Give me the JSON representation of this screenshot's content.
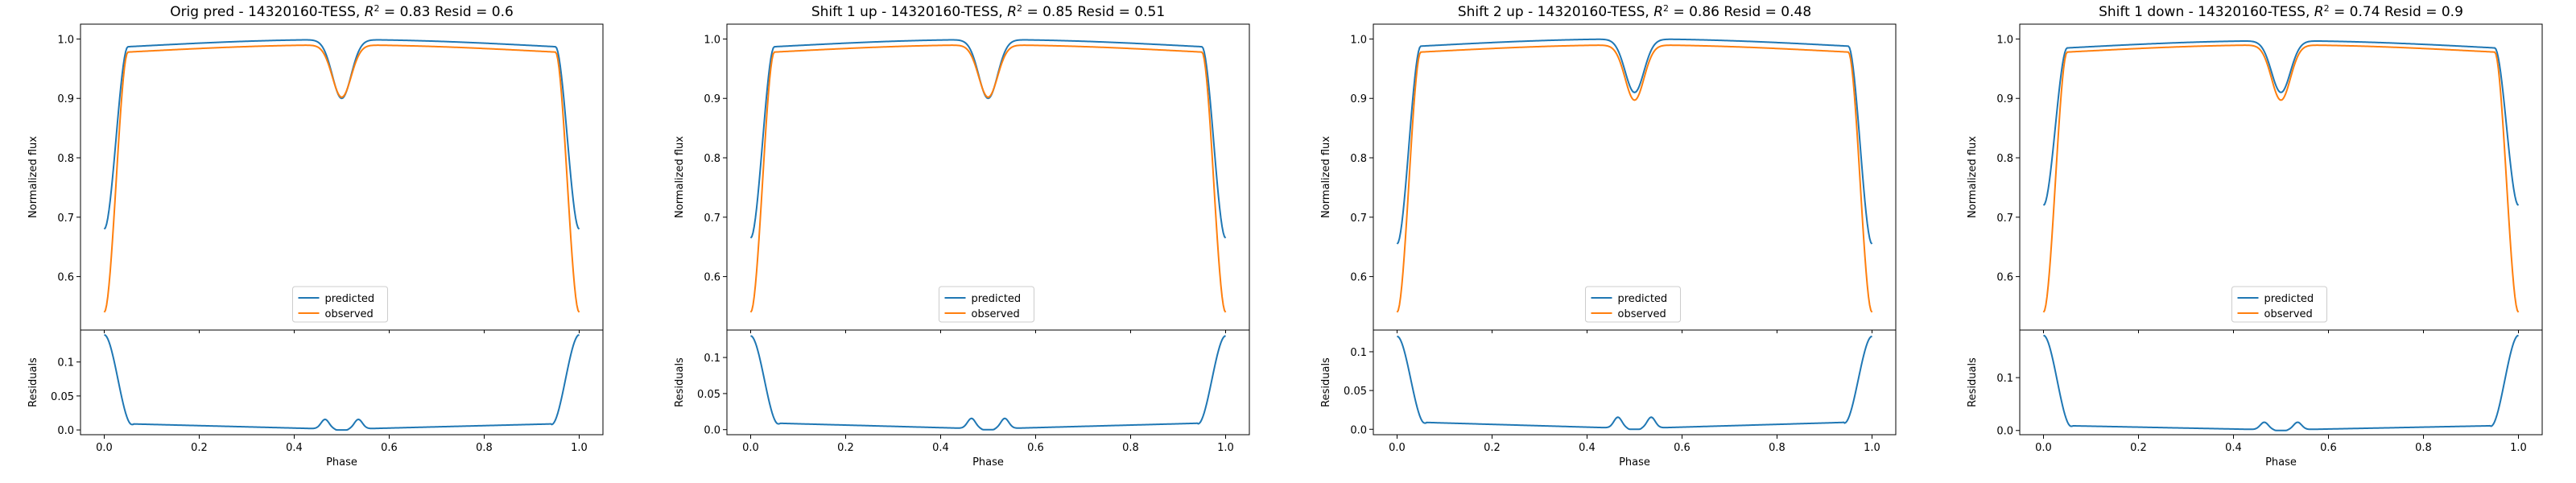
{
  "chart_data": [
    {
      "type": "line",
      "title_prefix": "Orig pred - 14320160-TESS, ",
      "r2": "0.83",
      "resid_text": " Resid = 0.6",
      "ylabel_top": "Normalized flux",
      "ylabel_bottom": "Residuals",
      "xlabel": "Phase",
      "xlim": [
        -0.05,
        1.05
      ],
      "xticks": [
        0.0,
        0.2,
        0.4,
        0.6,
        0.8,
        1.0
      ],
      "ylim_top": [
        0.51,
        1.025
      ],
      "yticks_top": [
        0.6,
        0.7,
        0.8,
        0.9,
        1.0
      ],
      "ylim_bottom": [
        -0.007,
        0.147
      ],
      "yticks_bottom": [
        0.0,
        0.05,
        0.1
      ],
      "legend": {
        "position": "lower-center",
        "entries": [
          "predicted",
          "observed"
        ]
      },
      "model": {
        "pred_edge": 0.68,
        "pred_plateau": 0.987,
        "pred_dip": 0.9,
        "obs_edge": 0.54,
        "obs_plateau": 0.978,
        "obs_dip": 0.902,
        "resid_max": 0.14
      },
      "series": [
        {
          "name": "predicted",
          "color": "#1f77b4"
        },
        {
          "name": "observed",
          "color": "#ff7f0e"
        }
      ]
    },
    {
      "type": "line",
      "title_prefix": "Shift 1 up - 14320160-TESS, ",
      "r2": "0.85",
      "resid_text": " Resid = 0.51",
      "ylabel_top": "Normalized flux",
      "ylabel_bottom": "Residuals",
      "xlabel": "Phase",
      "xlim": [
        -0.05,
        1.05
      ],
      "xticks": [
        0.0,
        0.2,
        0.4,
        0.6,
        0.8,
        1.0
      ],
      "ylim_top": [
        0.51,
        1.025
      ],
      "yticks_top": [
        0.6,
        0.7,
        0.8,
        0.9,
        1.0
      ],
      "ylim_bottom": [
        -0.007,
        0.138
      ],
      "yticks_bottom": [
        0.0,
        0.05,
        0.1
      ],
      "legend": {
        "position": "lower-center",
        "entries": [
          "predicted",
          "observed"
        ]
      },
      "model": {
        "pred_edge": 0.665,
        "pred_plateau": 0.987,
        "pred_dip": 0.9,
        "obs_edge": 0.54,
        "obs_plateau": 0.978,
        "obs_dip": 0.902,
        "resid_max": 0.13
      },
      "series": [
        {
          "name": "predicted",
          "color": "#1f77b4"
        },
        {
          "name": "observed",
          "color": "#ff7f0e"
        }
      ]
    },
    {
      "type": "line",
      "title_prefix": "Shift 2 up - 14320160-TESS, ",
      "r2": "0.86",
      "resid_text": " Resid = 0.48",
      "ylabel_top": "Normalized flux",
      "ylabel_bottom": "Residuals",
      "xlabel": "Phase",
      "xlim": [
        -0.05,
        1.05
      ],
      "xticks": [
        0.0,
        0.2,
        0.4,
        0.6,
        0.8,
        1.0
      ],
      "ylim_top": [
        0.51,
        1.025
      ],
      "yticks_top": [
        0.6,
        0.7,
        0.8,
        0.9,
        1.0
      ],
      "ylim_bottom": [
        -0.007,
        0.128
      ],
      "yticks_bottom": [
        0.0,
        0.05,
        0.1
      ],
      "legend": {
        "position": "lower-center",
        "entries": [
          "predicted",
          "observed"
        ]
      },
      "model": {
        "pred_edge": 0.655,
        "pred_plateau": 0.988,
        "pred_dip": 0.91,
        "obs_edge": 0.54,
        "obs_plateau": 0.978,
        "obs_dip": 0.897,
        "resid_max": 0.12
      },
      "series": [
        {
          "name": "predicted",
          "color": "#1f77b4"
        },
        {
          "name": "observed",
          "color": "#ff7f0e"
        }
      ]
    },
    {
      "type": "line",
      "title_prefix": "Shift 1 down - 14320160-TESS, ",
      "r2": "0.74",
      "resid_text": " Resid = 0.9",
      "ylabel_top": "Normalized flux",
      "ylabel_bottom": "Residuals",
      "xlabel": "Phase",
      "xlim": [
        -0.05,
        1.05
      ],
      "xticks": [
        0.0,
        0.2,
        0.4,
        0.6,
        0.8,
        1.0
      ],
      "ylim_top": [
        0.51,
        1.025
      ],
      "yticks_top": [
        0.6,
        0.7,
        0.8,
        0.9,
        1.0
      ],
      "ylim_bottom": [
        -0.008,
        0.19
      ],
      "yticks_bottom": [
        0.0,
        0.1
      ],
      "legend": {
        "position": "lower-center",
        "entries": [
          "predicted",
          "observed"
        ]
      },
      "model": {
        "pred_edge": 0.72,
        "pred_plateau": 0.985,
        "pred_dip": 0.91,
        "obs_edge": 0.54,
        "obs_plateau": 0.978,
        "obs_dip": 0.897,
        "resid_max": 0.18
      },
      "series": [
        {
          "name": "predicted",
          "color": "#1f77b4"
        },
        {
          "name": "observed",
          "color": "#ff7f0e"
        }
      ]
    }
  ]
}
